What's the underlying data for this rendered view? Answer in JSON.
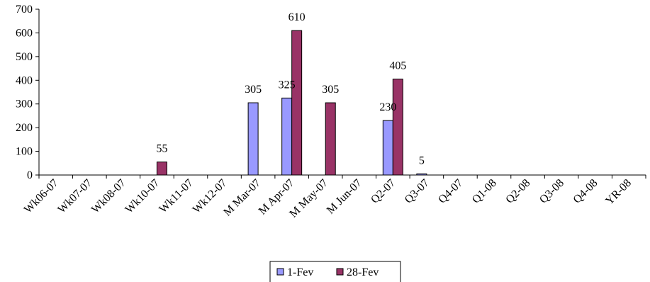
{
  "chart_data": {
    "type": "bar",
    "categories": [
      "Wk06-07",
      "Wk07-07",
      "Wk08-07",
      "Wk10-07",
      "Wk11-07",
      "Wk12-07",
      "M Mar-07",
      "M Apr-07",
      "M May-07",
      "M Jun-07",
      "Q2-07",
      "Q3-07",
      "Q4-07",
      "Q1-08",
      "Q2-08",
      "Q3-08",
      "Q4-08",
      "YR-08"
    ],
    "series": [
      {
        "name": "1-Fev",
        "color": "#9999ff",
        "values": [
          0,
          0,
          0,
          0,
          0,
          0,
          305,
          325,
          0,
          0,
          230,
          5,
          0,
          0,
          0,
          0,
          0,
          0
        ]
      },
      {
        "name": "28-Fev",
        "color": "#993366",
        "values": [
          0,
          0,
          0,
          55,
          0,
          0,
          0,
          610,
          305,
          0,
          405,
          0,
          0,
          0,
          0,
          0,
          0,
          0
        ]
      }
    ],
    "data_labels": [
      {
        "category": "Wk10-07",
        "series": "28-Fev",
        "text": "55"
      },
      {
        "category": "M Mar-07",
        "series": "1-Fev",
        "text": "305"
      },
      {
        "category": "M Apr-07",
        "series": "1-Fev",
        "text": "325"
      },
      {
        "category": "M Apr-07",
        "series": "28-Fev",
        "text": "610"
      },
      {
        "category": "M May-07",
        "series": "28-Fev",
        "text": "305"
      },
      {
        "category": "Q2-07",
        "series": "1-Fev",
        "text": "230"
      },
      {
        "category": "Q2-07",
        "series": "28-Fev",
        "text": "405"
      },
      {
        "category": "Q3-07",
        "series": "1-Fev",
        "text": "5"
      }
    ],
    "yticks": [
      "0",
      "100",
      "200",
      "300",
      "400",
      "500",
      "600",
      "700"
    ],
    "ylim": [
      0,
      700
    ],
    "grid": false,
    "legend_position": "bottom",
    "title": "",
    "xlabel": "",
    "ylabel": ""
  }
}
